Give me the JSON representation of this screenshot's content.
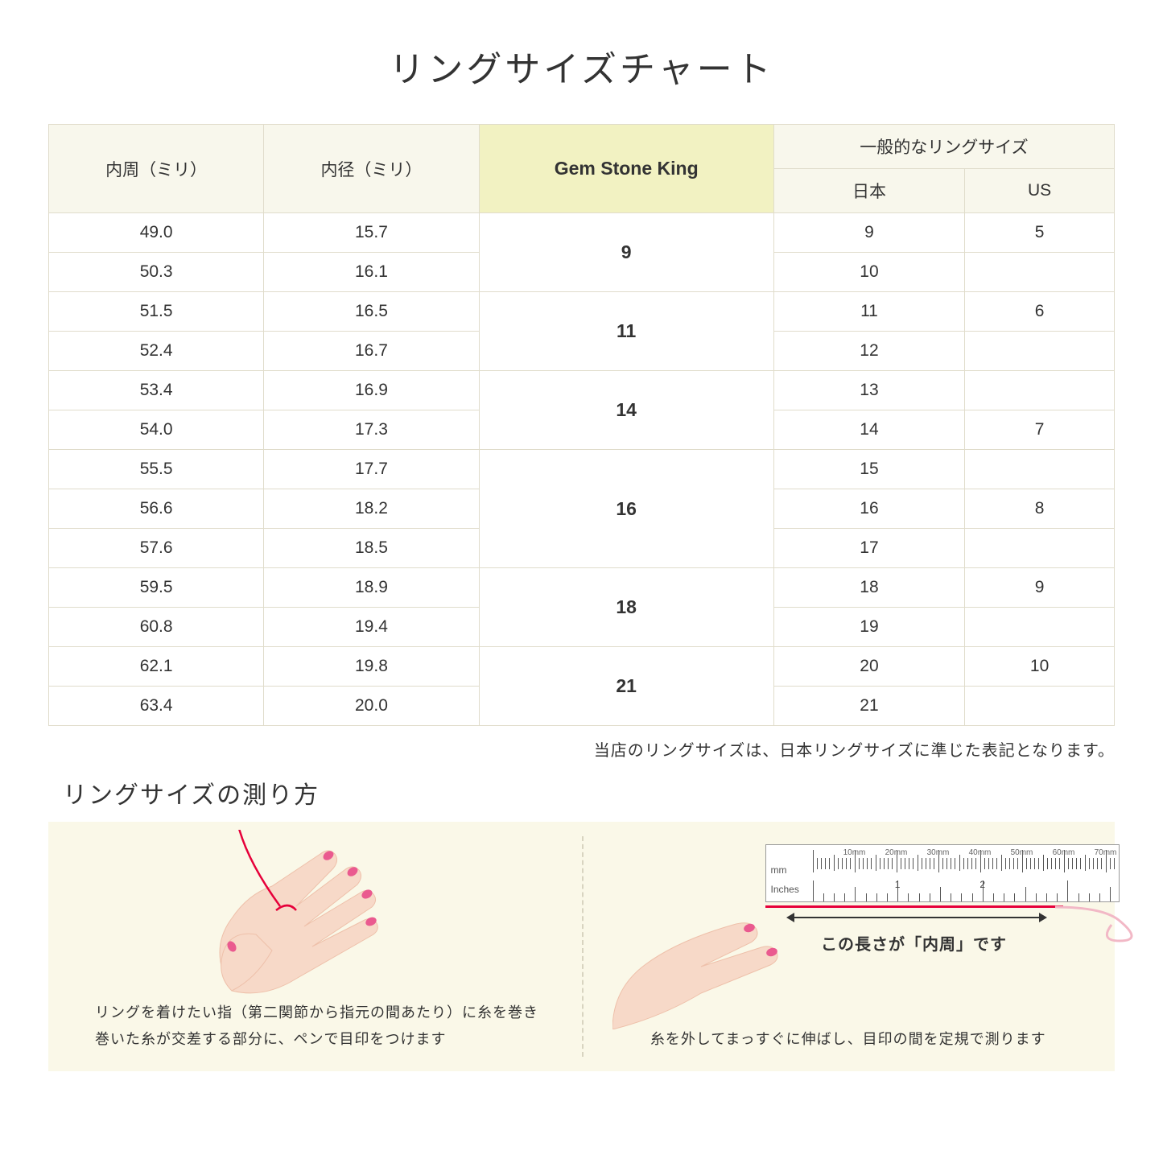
{
  "title": "リングサイズチャート",
  "table": {
    "headers": {
      "circumference": "内周（ミリ）",
      "diameter": "内径（ミリ）",
      "gsk": "Gem Stone King",
      "general": "一般的なリングサイズ",
      "japan": "日本",
      "us": "US"
    },
    "groups": [
      {
        "gsk": "9",
        "rows": [
          {
            "c": "49.0",
            "d": "15.7",
            "jp": "9",
            "us": "5"
          },
          {
            "c": "50.3",
            "d": "16.1",
            "jp": "10",
            "us": ""
          }
        ]
      },
      {
        "gsk": "11",
        "rows": [
          {
            "c": "51.5",
            "d": "16.5",
            "jp": "11",
            "us": "6"
          },
          {
            "c": "52.4",
            "d": "16.7",
            "jp": "12",
            "us": ""
          }
        ]
      },
      {
        "gsk": "14",
        "rows": [
          {
            "c": "53.4",
            "d": "16.9",
            "jp": "13",
            "us": ""
          },
          {
            "c": "54.0",
            "d": "17.3",
            "jp": "14",
            "us": "7"
          }
        ]
      },
      {
        "gsk": "16",
        "rows": [
          {
            "c": "55.5",
            "d": "17.7",
            "jp": "15",
            "us": ""
          },
          {
            "c": "56.6",
            "d": "18.2",
            "jp": "16",
            "us": "8"
          },
          {
            "c": "57.6",
            "d": "18.5",
            "jp": "17",
            "us": ""
          }
        ]
      },
      {
        "gsk": "18",
        "rows": [
          {
            "c": "59.5",
            "d": "18.9",
            "jp": "18",
            "us": "9"
          },
          {
            "c": "60.8",
            "d": "19.4",
            "jp": "19",
            "us": ""
          }
        ]
      },
      {
        "gsk": "21",
        "rows": [
          {
            "c": "62.1",
            "d": "19.8",
            "jp": "20",
            "us": "10"
          },
          {
            "c": "63.4",
            "d": "20.0",
            "jp": "21",
            "us": ""
          }
        ]
      }
    ]
  },
  "note": "当店のリングサイズは、日本リングサイズに準じた表記となります。",
  "howto": {
    "title": "リングサイズの測り方",
    "left_caption_1": "リングを着けたい指（第二関節から指元の間あたり）に糸を巻き",
    "left_caption_2": "巻いた糸が交差する部分に、ペンで目印をつけます",
    "right_caption": "糸を外してまっすぐに伸ばし、目印の間を定規で測ります",
    "measure_label": "この長さが「内周」です",
    "ruler": {
      "mm_unit": "mm",
      "in_unit": "Inches",
      "mm_marks": [
        "10mm",
        "20mm",
        "30mm",
        "40mm",
        "50mm",
        "60mm",
        "70mm"
      ],
      "in_marks": [
        "1",
        "2"
      ]
    }
  },
  "colors": {
    "header_bg": "#f8f7ec",
    "highlight_bg": "#f2f2c2",
    "border": "#e0dccb",
    "howto_bg": "#faf8e8",
    "thread": "#e6003a",
    "skin": "#f7d9c8",
    "skin_dark": "#eec0aa",
    "nail": "#ea5a8f"
  }
}
